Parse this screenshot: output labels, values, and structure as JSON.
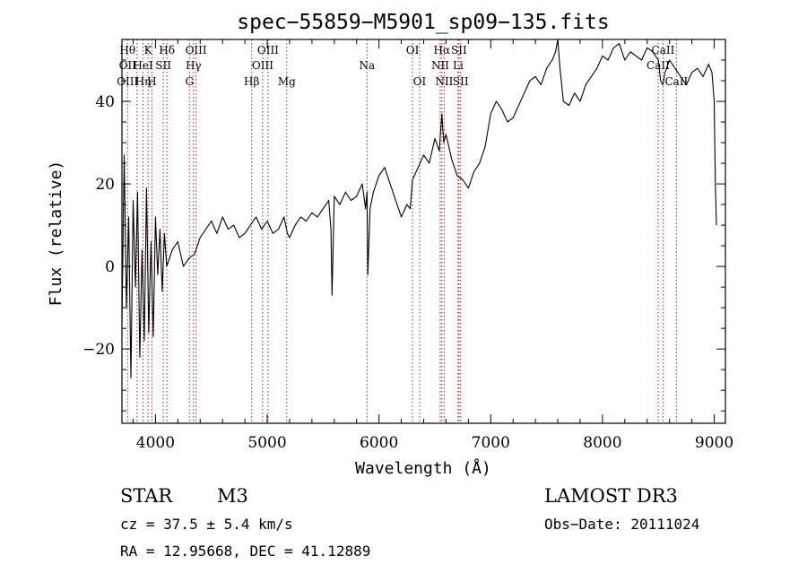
{
  "chart_data": {
    "type": "line",
    "title": "spec−55859−M5901_sp09−135.fits",
    "xlabel": "Wavelength (Å)",
    "ylabel": "Flux (relative)",
    "xlim": [
      3700,
      9100
    ],
    "ylim": [
      -38,
      55
    ],
    "xticks": [
      4000,
      5000,
      6000,
      7000,
      8000,
      9000
    ],
    "yticks": [
      -20,
      0,
      20,
      40
    ],
    "series": [
      {
        "name": "flux",
        "x": [
          3700,
          3720,
          3740,
          3760,
          3780,
          3800,
          3820,
          3840,
          3860,
          3880,
          3900,
          3920,
          3940,
          3960,
          3980,
          4000,
          4020,
          4040,
          4060,
          4080,
          4100,
          4150,
          4200,
          4250,
          4300,
          4350,
          4400,
          4450,
          4500,
          4550,
          4600,
          4650,
          4700,
          4750,
          4800,
          4850,
          4900,
          4950,
          5000,
          5050,
          5100,
          5150,
          5180,
          5200,
          5250,
          5300,
          5350,
          5400,
          5450,
          5500,
          5550,
          5570,
          5580,
          5600,
          5650,
          5700,
          5750,
          5800,
          5850,
          5880,
          5893,
          5900,
          5920,
          5950,
          6000,
          6050,
          6100,
          6150,
          6200,
          6250,
          6280,
          6300,
          6350,
          6400,
          6450,
          6500,
          6540,
          6563,
          6580,
          6600,
          6650,
          6700,
          6750,
          6800,
          6850,
          6900,
          6950,
          7000,
          7050,
          7100,
          7150,
          7200,
          7250,
          7300,
          7350,
          7400,
          7450,
          7500,
          7550,
          7580,
          7600,
          7620,
          7650,
          7700,
          7750,
          7800,
          7850,
          7900,
          7950,
          8000,
          8050,
          8100,
          8150,
          8200,
          8250,
          8300,
          8350,
          8400,
          8450,
          8500,
          8520,
          8540,
          8560,
          8600,
          8650,
          8700,
          8750,
          8800,
          8850,
          8900,
          8950,
          8980,
          9000,
          9010,
          9020
        ],
        "values": [
          -14,
          27,
          -10,
          12,
          -27,
          16,
          -5,
          18,
          -22,
          4,
          -18,
          19,
          -16,
          6,
          -17,
          12,
          -2,
          9,
          -6,
          8,
          0,
          4,
          6,
          0,
          2,
          3,
          7,
          9,
          11,
          8,
          12,
          9,
          10,
          7,
          8,
          10,
          12,
          9,
          11,
          8,
          9,
          12,
          8,
          7,
          10,
          12,
          11,
          13,
          12,
          14,
          16,
          9,
          -7,
          17,
          15,
          18,
          16,
          17,
          20,
          14,
          18,
          -2,
          14,
          18,
          22,
          24,
          20,
          16,
          12,
          15,
          14,
          21,
          24,
          27,
          25,
          31,
          28,
          37,
          30,
          32,
          26,
          22,
          21,
          19,
          23,
          25,
          29,
          37,
          40,
          38,
          35,
          36,
          39,
          42,
          45,
          46,
          44,
          48,
          50,
          52,
          55,
          48,
          40,
          39,
          42,
          40,
          44,
          46,
          48,
          51,
          50,
          53,
          54,
          50,
          52,
          51,
          50,
          53,
          52,
          50,
          45,
          44,
          47,
          50,
          48,
          46,
          44,
          47,
          48,
          46,
          49,
          47,
          40,
          20,
          10
        ],
        "color": "#000000"
      }
    ],
    "lines": [
      {
        "w": 3750,
        "labels": [
          {
            "text": "Hθ",
            "row": 0
          },
          {
            "text": "OII",
            "row": 1
          },
          {
            "text": "OIII",
            "row": 2
          }
        ]
      },
      {
        "w": 3835,
        "labels": []
      },
      {
        "w": 3889,
        "labels": [
          {
            "text": "HeI",
            "row": 1
          },
          {
            "text": "Hη",
            "row": 2
          }
        ]
      },
      {
        "w": 3934,
        "labels": [
          {
            "text": "K",
            "row": 0
          }
        ]
      },
      {
        "w": 3968,
        "labels": [
          {
            "text": "H",
            "row": 2
          }
        ]
      },
      {
        "w": 4070,
        "labels": [
          {
            "text": "SII",
            "row": 1
          }
        ]
      },
      {
        "w": 4102,
        "labels": [
          {
            "text": "Hδ",
            "row": 0
          }
        ]
      },
      {
        "w": 4304,
        "labels": [
          {
            "text": "G",
            "row": 2
          }
        ]
      },
      {
        "w": 4340,
        "labels": [
          {
            "text": "Hγ",
            "row": 1
          }
        ]
      },
      {
        "w": 4363,
        "labels": [
          {
            "text": "OIII",
            "row": 0
          }
        ]
      },
      {
        "w": 4861,
        "labels": [
          {
            "text": "Hβ",
            "row": 2
          }
        ]
      },
      {
        "w": 4959,
        "labels": [
          {
            "text": "OIII",
            "row": 1
          }
        ]
      },
      {
        "w": 5007,
        "labels": [
          {
            "text": "OIII",
            "row": 0
          }
        ]
      },
      {
        "w": 5175,
        "labels": [
          {
            "text": "Mg",
            "row": 2
          }
        ]
      },
      {
        "w": 5893,
        "labels": [
          {
            "text": "Na",
            "row": 1
          }
        ]
      },
      {
        "w": 6300,
        "labels": [
          {
            "text": "OI",
            "row": 0
          }
        ]
      },
      {
        "w": 6364,
        "labels": [
          {
            "text": "OI",
            "row": 2
          }
        ]
      },
      {
        "w": 6548,
        "labels": [
          {
            "text": "NII",
            "row": 1
          }
        ]
      },
      {
        "w": 6563,
        "labels": [
          {
            "text": "Hα",
            "row": 0
          }
        ]
      },
      {
        "w": 6584,
        "labels": [
          {
            "text": "NII",
            "row": 2
          }
        ]
      },
      {
        "w": 6708,
        "labels": [
          {
            "text": "Li",
            "row": 1
          }
        ]
      },
      {
        "w": 6716,
        "labels": [
          {
            "text": "SII",
            "row": 0
          }
        ]
      },
      {
        "w": 6731,
        "labels": [
          {
            "text": "SII",
            "row": 2
          }
        ]
      },
      {
        "w": 8498,
        "labels": [
          {
            "text": "CaII",
            "row": 1
          }
        ]
      },
      {
        "w": 8542,
        "labels": [
          {
            "text": "CaII",
            "row": 0
          }
        ]
      },
      {
        "w": 8662,
        "labels": [
          {
            "text": "CaII",
            "row": 2
          }
        ]
      }
    ]
  },
  "info": {
    "class": "STAR",
    "subclass": "M3",
    "survey": "LAMOST DR3",
    "cz": "cz = 37.5 ± 5.4 km/s",
    "obs_date": "Obs−Date: 20111024",
    "coords": "RA =  12.95668, DEC =  41.12889"
  }
}
